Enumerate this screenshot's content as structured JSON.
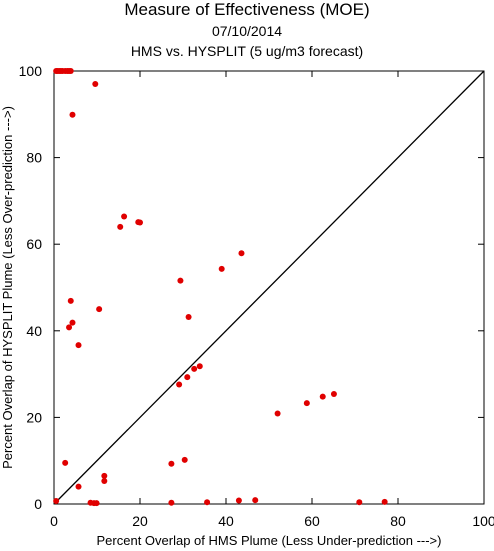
{
  "header": {
    "title": "Measure of Effectiveness (MOE)",
    "date": "07/10/2014",
    "subtitle": "HMS vs. HYSPLIT  (5 ug/m3 forecast)"
  },
  "chart_data": {
    "type": "scatter",
    "title": "Measure of Effectiveness (MOE)",
    "subtitle": "07/10/2014 — HMS vs. HYSPLIT  (5 ug/m3 forecast)",
    "xlabel": "Percent Overlap of HMS Plume (Less Under-prediction --->)",
    "ylabel": "Percent Overlap of HYSPLIT Plume (Less Over-prediction --->)",
    "xlim": [
      0,
      100
    ],
    "ylim": [
      0,
      100
    ],
    "xticks": [
      0,
      20,
      40,
      60,
      80,
      100
    ],
    "yticks": [
      0,
      20,
      40,
      60,
      80,
      100
    ],
    "diagonal": true,
    "grid": false,
    "point_color": "#e00000",
    "series": [
      {
        "x": [
          0.5,
          0.8,
          1.2,
          1.6,
          2.0,
          2.6,
          3.1,
          3.5,
          3.9,
          9.6,
          4.3,
          16.3,
          15.4,
          19.6,
          20.0,
          43.6,
          39.0,
          29.4,
          3.9,
          10.5,
          4.3,
          3.5,
          31.3,
          5.7,
          33.9,
          32.6,
          31.0,
          29.1,
          52.0,
          58.8,
          62.5,
          65.1,
          2.6,
          30.4,
          27.3,
          11.7,
          11.7,
          5.7,
          0.5,
          8.5,
          9.3,
          9.9,
          27.3,
          35.6,
          43.0,
          46.8,
          71.0,
          76.9
        ],
        "y": [
          100,
          100,
          100,
          100,
          100,
          100,
          100,
          100,
          100,
          97.0,
          89.9,
          66.4,
          64.0,
          65.1,
          65.0,
          57.9,
          54.3,
          51.6,
          46.9,
          45.0,
          41.9,
          40.8,
          43.2,
          36.7,
          31.8,
          31.2,
          29.3,
          27.6,
          20.9,
          23.3,
          24.8,
          25.4,
          9.5,
          10.2,
          9.3,
          6.5,
          5.3,
          4.0,
          0.7,
          0.3,
          0.2,
          0.2,
          0.3,
          0.4,
          0.8,
          0.9,
          0.4,
          0.5
        ]
      }
    ]
  }
}
